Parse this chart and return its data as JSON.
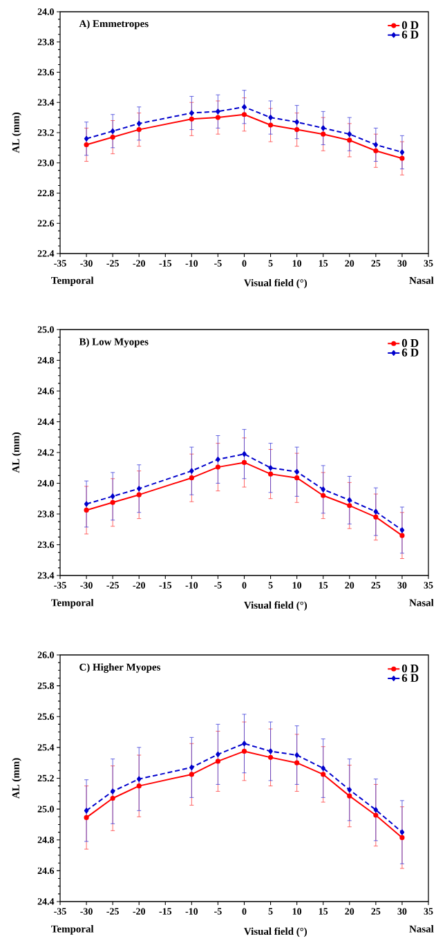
{
  "chart_data": [
    {
      "type": "line",
      "title": "A) Emmetropes",
      "xlabel": "Visual field (°)",
      "ylabel": "AL (mm)",
      "annotations": [
        "Temporal",
        "Nasal"
      ],
      "legend": "top right",
      "x": [
        -30,
        -25,
        -20,
        -10,
        -5,
        0,
        5,
        10,
        15,
        20,
        25,
        30
      ],
      "xlim": [
        -35,
        35
      ],
      "xticks": [
        -35,
        -30,
        -25,
        -20,
        -15,
        -10,
        -5,
        0,
        5,
        10,
        15,
        20,
        25,
        30,
        35
      ],
      "ylim": [
        22.4,
        24.0
      ],
      "yticks": [
        22.4,
        22.6,
        22.8,
        {
          "value": 23,
          "label": "23.0"
        },
        23.2,
        23.4,
        23.6,
        23.8,
        {
          "value": 24,
          "label": "24.0"
        }
      ],
      "series": [
        {
          "name": "0 D",
          "color": "#ff0000",
          "marker": "circle",
          "line_style": "solid",
          "values": [
            23.12,
            23.17,
            23.22,
            23.29,
            23.3,
            23.32,
            23.25,
            23.22,
            23.19,
            23.15,
            23.08,
            23.03
          ],
          "errors": [
            0.11,
            0.11,
            0.11,
            0.11,
            0.11,
            0.11,
            0.11,
            0.11,
            0.11,
            0.11,
            0.11,
            0.11
          ]
        },
        {
          "name": "6 D",
          "color": "#0000cc",
          "marker": "diamond",
          "line_style": "dashed",
          "values": [
            23.16,
            23.21,
            23.26,
            23.33,
            23.34,
            23.37,
            23.3,
            23.27,
            23.23,
            23.19,
            23.12,
            23.07
          ],
          "errors": [
            0.11,
            0.11,
            0.11,
            0.11,
            0.11,
            0.11,
            0.11,
            0.11,
            0.11,
            0.11,
            0.11,
            0.11
          ]
        }
      ]
    },
    {
      "type": "line",
      "title": "B) Low Myopes",
      "xlabel": "Visual field (°)",
      "ylabel": "AL (mm)",
      "annotations": [
        "Temporal",
        "Nasal"
      ],
      "legend": "top right",
      "x": [
        -30,
        -25,
        -20,
        -10,
        -5,
        0,
        5,
        10,
        15,
        20,
        25,
        30
      ],
      "xlim": [
        -35,
        35
      ],
      "xticks": [
        -35,
        -30,
        -25,
        -20,
        -15,
        -10,
        -5,
        0,
        5,
        10,
        15,
        20,
        25,
        30,
        35
      ],
      "ylim": [
        23.4,
        25.0
      ],
      "yticks": [
        23.4,
        23.6,
        23.8,
        {
          "value": 24,
          "label": "24.0"
        },
        24.2,
        24.4,
        24.6,
        24.8,
        {
          "value": 25,
          "label": "25.0"
        }
      ],
      "series": [
        {
          "name": "0 D",
          "color": "#ff0000",
          "marker": "circle",
          "line_style": "solid",
          "values": [
            23.825,
            23.875,
            23.925,
            24.035,
            24.105,
            24.135,
            24.06,
            24.035,
            23.92,
            23.855,
            23.78,
            23.66
          ],
          "errors": [
            0.155,
            0.155,
            0.155,
            0.155,
            0.155,
            0.16,
            0.16,
            0.16,
            0.15,
            0.15,
            0.15,
            0.15
          ]
        },
        {
          "name": "6 D",
          "color": "#0000cc",
          "marker": "diamond",
          "line_style": "dashed",
          "values": [
            23.865,
            23.915,
            23.965,
            24.08,
            24.155,
            24.19,
            24.1,
            24.075,
            23.96,
            23.89,
            23.815,
            23.695
          ],
          "errors": [
            0.15,
            0.155,
            0.155,
            0.155,
            0.155,
            0.16,
            0.16,
            0.16,
            0.155,
            0.155,
            0.155,
            0.15
          ]
        }
      ]
    },
    {
      "type": "line",
      "title": "C) Higher Myopes",
      "xlabel": "Visual field (°)",
      "ylabel": "AL (mm)",
      "annotations": [
        "Temporal",
        "Nasal"
      ],
      "legend": "top right",
      "x": [
        -30,
        -25,
        -20,
        -10,
        -5,
        0,
        5,
        10,
        15,
        20,
        25,
        30
      ],
      "xlim": [
        -35,
        35
      ],
      "xticks": [
        -35,
        -30,
        -25,
        -20,
        -15,
        -10,
        -5,
        0,
        5,
        10,
        15,
        20,
        25,
        30,
        35
      ],
      "ylim": [
        24.4,
        26.0
      ],
      "yticks": [
        24.4,
        24.6,
        24.8,
        {
          "value": 25,
          "label": "25.0"
        },
        25.2,
        25.4,
        25.6,
        25.8,
        {
          "value": 26,
          "label": "26.0"
        }
      ],
      "series": [
        {
          "name": "0 D",
          "color": "#ff0000",
          "marker": "circle",
          "line_style": "solid",
          "values": [
            24.945,
            25.07,
            25.15,
            25.225,
            25.31,
            25.375,
            25.335,
            25.3,
            25.225,
            25.085,
            24.96,
            24.815
          ],
          "errors": [
            0.205,
            0.21,
            0.2,
            0.2,
            0.195,
            0.19,
            0.185,
            0.185,
            0.18,
            0.2,
            0.2,
            0.2
          ]
        },
        {
          "name": "6 D",
          "color": "#0000cc",
          "marker": "diamond",
          "line_style": "dashed",
          "values": [
            24.99,
            25.115,
            25.195,
            25.27,
            25.355,
            25.425,
            25.375,
            25.35,
            25.265,
            25.125,
            24.995,
            24.85
          ],
          "errors": [
            0.2,
            0.21,
            0.205,
            0.195,
            0.195,
            0.19,
            0.19,
            0.19,
            0.19,
            0.2,
            0.2,
            0.205
          ]
        }
      ]
    }
  ]
}
